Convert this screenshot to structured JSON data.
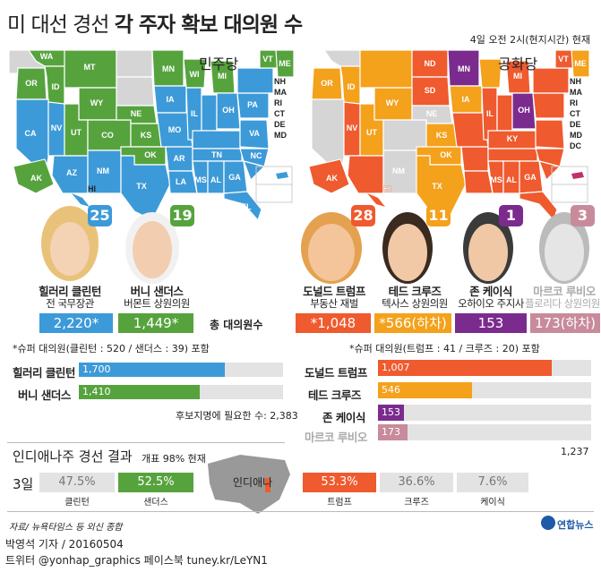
{
  "header": {
    "title_normal": "미 대선 경선 ",
    "title_bold": "각 주자 확보 대의원 수",
    "timestamp": "4일 오전 2시(현지시간) 현재"
  },
  "dem": {
    "party": "민주당",
    "states": {
      "wa": "WA",
      "mt": "MT",
      "id": "ID",
      "wy": "WY",
      "or": "OR",
      "nv": "NV",
      "ut": "UT",
      "co": "CO",
      "ca": "CA",
      "az": "AZ",
      "nm": "NM",
      "ne": "NE",
      "ks": "KS",
      "ok": "OK",
      "tx": "TX",
      "mn": "MN",
      "ia": "IA",
      "mo": "MO",
      "ar": "AR",
      "la": "LA",
      "ms": "MS",
      "al": "AL",
      "ga": "GA",
      "fl": "FL",
      "wi": "WI",
      "mi": "MI",
      "il": "IL",
      "oh": "OH",
      "pa": "PA",
      "va": "VA",
      "nc": "NC",
      "tn": "TN",
      "vt": "VT",
      "me": "ME",
      "nh": "NH",
      "ma": "MA",
      "ri": "RI",
      "ct": "CT",
      "de": "DE",
      "md": "MD",
      "ak": "AK",
      "hi": "HI"
    }
  },
  "rep": {
    "party": "공화당",
    "states": {
      "id": "ID",
      "wy": "WY",
      "or": "OR",
      "nv": "NV",
      "ut": "UT",
      "ks": "KS",
      "ak": "AK",
      "hi": "HI",
      "nh": "NH",
      "ma": "MA",
      "ri": "RI",
      "ct": "CT",
      "md": "MD",
      "ky": "KY",
      "ok": "OK",
      "tx": "TX",
      "nm": "NM",
      "mn": "MN",
      "mi": "MI",
      "oh": "OH",
      "nd": "ND",
      "sd": "SD",
      "ne": "NE",
      "ia": "IA",
      "il": "IL",
      "ms": "MS",
      "al": "AL",
      "ga": "GA",
      "dc": "DC",
      "vt": "VT",
      "de": "DE",
      "me": "ME"
    }
  },
  "candidates": {
    "clinton": {
      "wins": "25",
      "name": "힐러리 클린턴",
      "role": "전 국무장관",
      "total": "2,220*",
      "color": "#3d9ad8"
    },
    "sanders": {
      "wins": "19",
      "name": "버니 샌더스",
      "role": "버몬트 상원의원",
      "total": "1,449*",
      "color": "#56a33e"
    },
    "trump": {
      "wins": "28",
      "name": "도널드 트럼프",
      "role": "부동산 재벌",
      "total": "*1,048",
      "color": "#ef5a2e"
    },
    "cruz": {
      "wins": "11",
      "name": "테드 크루즈",
      "role": "텍사스 상원의원",
      "total": "*566(하차)",
      "color": "#f4a11c"
    },
    "kasich": {
      "wins": "1",
      "name": "존 케이식",
      "role": "오하이오 주지사",
      "total": "153",
      "color": "#7b2b8e"
    },
    "rubio": {
      "wins": "3",
      "name": "마르코 루비오",
      "role": "플로리다 상원의원",
      "total": "173(하차)",
      "color": "#c88b9c"
    }
  },
  "total_label": "총 대의원수",
  "dem_note": "*슈퍼 대의원(클린턴 : 520 / 샌더스 : 39) 포함",
  "rep_note": "*슈퍼 대의원(트럼프 : 41 / 크루즈 : 20) 포함",
  "dem_bars": [
    {
      "name": "힐러리 클린턴",
      "value": 1700,
      "label": "1,700"
    },
    {
      "name": "버니 샌더스",
      "value": 1410,
      "label": "1,410"
    }
  ],
  "dem_needed": "후보지명에 필요한 수: 2,383",
  "dem_max": 2383,
  "rep_bars": [
    {
      "name": "도널드 트럼프",
      "value": 1007,
      "label": "1,007"
    },
    {
      "name": "테드 크루즈",
      "value": 546,
      "label": "546"
    },
    {
      "name": "존 케이식",
      "value": 153,
      "label": "153"
    },
    {
      "name": "마르코 루비오",
      "value": 173,
      "label": "173"
    }
  ],
  "rep_max": 1237,
  "rep_needed": "1,237",
  "indiana": {
    "title": "인디애나주 경선 결과",
    "subtitle": "개표 98% 현재",
    "date": "3일",
    "state_label": "인디애나",
    "dem": [
      {
        "pct": "47.5%",
        "name": "클린턴"
      },
      {
        "pct": "52.5%",
        "name": "샌더스"
      }
    ],
    "rep": [
      {
        "pct": "53.3%",
        "name": "트럼프"
      },
      {
        "pct": "36.6%",
        "name": "크루즈"
      },
      {
        "pct": "7.6%",
        "name": "케이식"
      }
    ]
  },
  "footer": {
    "source": "자료/ 뉴욕타임스 등 외신 종합",
    "logo": "연합뉴스",
    "reporter": "박영석 기자 / 20160504",
    "sns": "트위터 @yonhap_graphics  페이스북 tuney.kr/LeYN1"
  }
}
